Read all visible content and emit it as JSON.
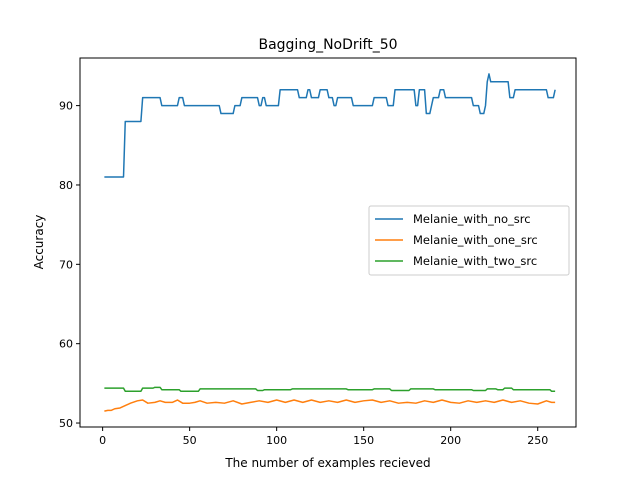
{
  "chart_data": {
    "type": "line",
    "title": "Bagging_NoDrift_50",
    "xlabel": "The number of examples recieved",
    "ylabel": "Accuracy",
    "xlim": [
      -13,
      272
    ],
    "ylim": [
      49.5,
      96
    ],
    "xticks": [
      0,
      50,
      100,
      150,
      200,
      250
    ],
    "yticks": [
      50,
      60,
      70,
      80,
      90
    ],
    "grid": false,
    "legend_position": "center-right",
    "series": [
      {
        "name": "Melanie_with_no_src",
        "color": "#1f77b4",
        "points": [
          [
            1,
            81
          ],
          [
            12,
            81
          ],
          [
            13,
            88
          ],
          [
            22,
            88
          ],
          [
            23,
            91
          ],
          [
            33,
            91
          ],
          [
            34,
            90
          ],
          [
            43,
            90
          ],
          [
            44,
            91
          ],
          [
            46,
            91
          ],
          [
            47,
            90
          ],
          [
            54,
            90
          ],
          [
            55,
            90
          ],
          [
            67,
            90
          ],
          [
            68,
            89
          ],
          [
            75,
            89
          ],
          [
            76,
            90
          ],
          [
            79,
            90
          ],
          [
            80,
            91
          ],
          [
            89,
            91
          ],
          [
            90,
            90
          ],
          [
            91,
            90
          ],
          [
            92,
            91
          ],
          [
            93,
            91
          ],
          [
            94,
            90
          ],
          [
            101,
            90
          ],
          [
            102,
            92
          ],
          [
            112,
            92
          ],
          [
            113,
            91
          ],
          [
            117,
            91
          ],
          [
            118,
            92
          ],
          [
            119,
            92
          ],
          [
            120,
            91
          ],
          [
            124,
            91
          ],
          [
            125,
            92
          ],
          [
            129,
            92
          ],
          [
            130,
            91
          ],
          [
            132,
            91
          ],
          [
            133,
            90
          ],
          [
            134,
            90
          ],
          [
            135,
            91
          ],
          [
            143,
            91
          ],
          [
            144,
            90
          ],
          [
            155,
            90
          ],
          [
            156,
            91
          ],
          [
            163,
            91
          ],
          [
            164,
            90
          ],
          [
            167,
            90
          ],
          [
            168,
            92
          ],
          [
            179,
            92
          ],
          [
            180,
            90
          ],
          [
            181,
            90
          ],
          [
            182,
            92
          ],
          [
            185,
            92
          ],
          [
            186,
            89
          ],
          [
            188,
            89
          ],
          [
            189,
            90
          ],
          [
            190,
            91
          ],
          [
            193,
            91
          ],
          [
            194,
            92
          ],
          [
            196,
            92
          ],
          [
            197,
            91
          ],
          [
            212,
            91
          ],
          [
            213,
            90
          ],
          [
            216,
            90
          ],
          [
            217,
            89
          ],
          [
            219,
            89
          ],
          [
            220,
            90
          ],
          [
            221,
            93
          ],
          [
            222,
            94
          ],
          [
            223,
            93
          ],
          [
            233,
            93
          ],
          [
            234,
            91
          ],
          [
            236,
            91
          ],
          [
            237,
            92
          ],
          [
            255,
            92
          ],
          [
            256,
            91
          ],
          [
            259,
            91
          ],
          [
            260,
            92
          ]
        ]
      },
      {
        "name": "Melanie_with_one_src",
        "color": "#ff7f0e",
        "points": [
          [
            1,
            51.5
          ],
          [
            3,
            51.6
          ],
          [
            5,
            51.6
          ],
          [
            7,
            51.8
          ],
          [
            10,
            51.9
          ],
          [
            13,
            52.2
          ],
          [
            16,
            52.5
          ],
          [
            20,
            52.8
          ],
          [
            23,
            52.9
          ],
          [
            26,
            52.5
          ],
          [
            30,
            52.6
          ],
          [
            33,
            52.8
          ],
          [
            36,
            52.6
          ],
          [
            40,
            52.6
          ],
          [
            43,
            52.9
          ],
          [
            46,
            52.5
          ],
          [
            50,
            52.5
          ],
          [
            53,
            52.6
          ],
          [
            56,
            52.8
          ],
          [
            60,
            52.5
          ],
          [
            65,
            52.6
          ],
          [
            70,
            52.5
          ],
          [
            75,
            52.8
          ],
          [
            80,
            52.4
          ],
          [
            85,
            52.6
          ],
          [
            90,
            52.8
          ],
          [
            95,
            52.6
          ],
          [
            100,
            52.9
          ],
          [
            105,
            52.6
          ],
          [
            110,
            52.9
          ],
          [
            115,
            52.6
          ],
          [
            120,
            52.9
          ],
          [
            125,
            52.6
          ],
          [
            130,
            52.8
          ],
          [
            135,
            52.6
          ],
          [
            140,
            52.9
          ],
          [
            145,
            52.6
          ],
          [
            150,
            52.8
          ],
          [
            155,
            52.9
          ],
          [
            160,
            52.6
          ],
          [
            165,
            52.8
          ],
          [
            170,
            52.5
          ],
          [
            175,
            52.6
          ],
          [
            180,
            52.5
          ],
          [
            185,
            52.8
          ],
          [
            190,
            52.6
          ],
          [
            195,
            52.9
          ],
          [
            200,
            52.6
          ],
          [
            205,
            52.5
          ],
          [
            210,
            52.8
          ],
          [
            215,
            52.6
          ],
          [
            220,
            52.8
          ],
          [
            225,
            52.6
          ],
          [
            230,
            52.9
          ],
          [
            235,
            52.6
          ],
          [
            240,
            52.8
          ],
          [
            245,
            52.5
          ],
          [
            250,
            52.4
          ],
          [
            255,
            52.8
          ],
          [
            258,
            52.6
          ],
          [
            260,
            52.6
          ]
        ]
      },
      {
        "name": "Melanie_with_two_src",
        "color": "#2ca02c",
        "points": [
          [
            1,
            54.4
          ],
          [
            12,
            54.4
          ],
          [
            13,
            54.0
          ],
          [
            22,
            54.0
          ],
          [
            23,
            54.4
          ],
          [
            29,
            54.4
          ],
          [
            30,
            54.5
          ],
          [
            33,
            54.5
          ],
          [
            34,
            54.2
          ],
          [
            44,
            54.2
          ],
          [
            45,
            54.0
          ],
          [
            55,
            54.0
          ],
          [
            56,
            54.3
          ],
          [
            88,
            54.3
          ],
          [
            89,
            54.1
          ],
          [
            92,
            54.1
          ],
          [
            93,
            54.2
          ],
          [
            108,
            54.2
          ],
          [
            109,
            54.3
          ],
          [
            140,
            54.3
          ],
          [
            141,
            54.2
          ],
          [
            155,
            54.2
          ],
          [
            156,
            54.3
          ],
          [
            165,
            54.3
          ],
          [
            166,
            54.1
          ],
          [
            176,
            54.1
          ],
          [
            177,
            54.3
          ],
          [
            190,
            54.3
          ],
          [
            191,
            54.2
          ],
          [
            212,
            54.2
          ],
          [
            213,
            54.1
          ],
          [
            220,
            54.1
          ],
          [
            221,
            54.3
          ],
          [
            226,
            54.3
          ],
          [
            227,
            54.2
          ],
          [
            230,
            54.2
          ],
          [
            231,
            54.4
          ],
          [
            235,
            54.4
          ],
          [
            236,
            54.2
          ],
          [
            257,
            54.2
          ],
          [
            258,
            54.0
          ],
          [
            260,
            54.0
          ]
        ]
      }
    ]
  }
}
